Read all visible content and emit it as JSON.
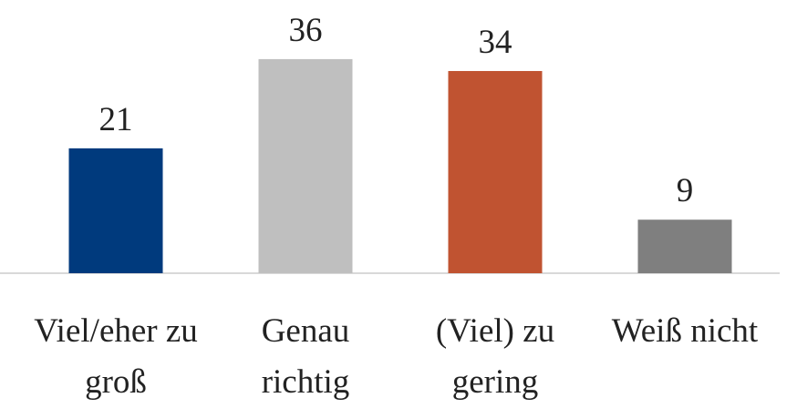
{
  "chart_data": {
    "type": "bar",
    "categories": [
      "Viel/eher zu groß",
      "Genau richtig",
      "(Viel) zu gering",
      "Weiß nicht"
    ],
    "values": [
      21,
      36,
      34,
      9
    ],
    "colors": [
      "#003a7d",
      "#bfbfbf",
      "#c05331",
      "#7f7f7f"
    ]
  }
}
